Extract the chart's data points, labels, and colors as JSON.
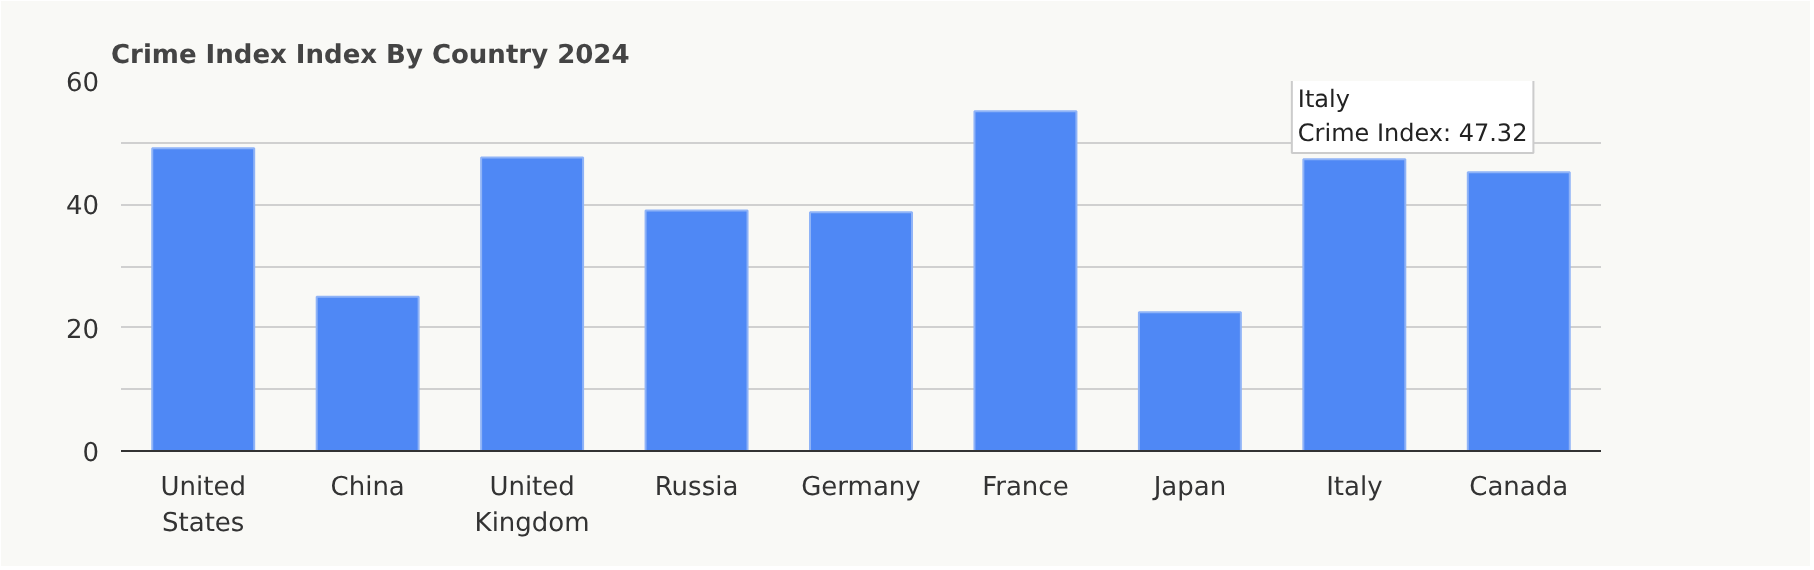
{
  "chart_data": {
    "type": "bar",
    "title": "Crime Index Index By Country 2024",
    "categories": [
      "United States",
      "China",
      "United Kingdom",
      "Russia",
      "Germany",
      "France",
      "Japan",
      "Italy",
      "Canada"
    ],
    "values": [
      49.1,
      25.0,
      47.6,
      39.0,
      38.7,
      55.1,
      22.5,
      47.32,
      45.2
    ],
    "color": "#4f88f5",
    "ylim": [
      0,
      60
    ],
    "yticks": [
      0,
      {
        "value": 10,
        "label": null
      },
      20,
      {
        "value": 30,
        "label": null
      },
      40,
      {
        "value": 50,
        "label": null
      },
      60
    ],
    "grid": "y",
    "annotations": [
      {
        "text": "Italy\nCrime Index: 47.32",
        "x": "Italy",
        "y": 47.32
      }
    ]
  }
}
